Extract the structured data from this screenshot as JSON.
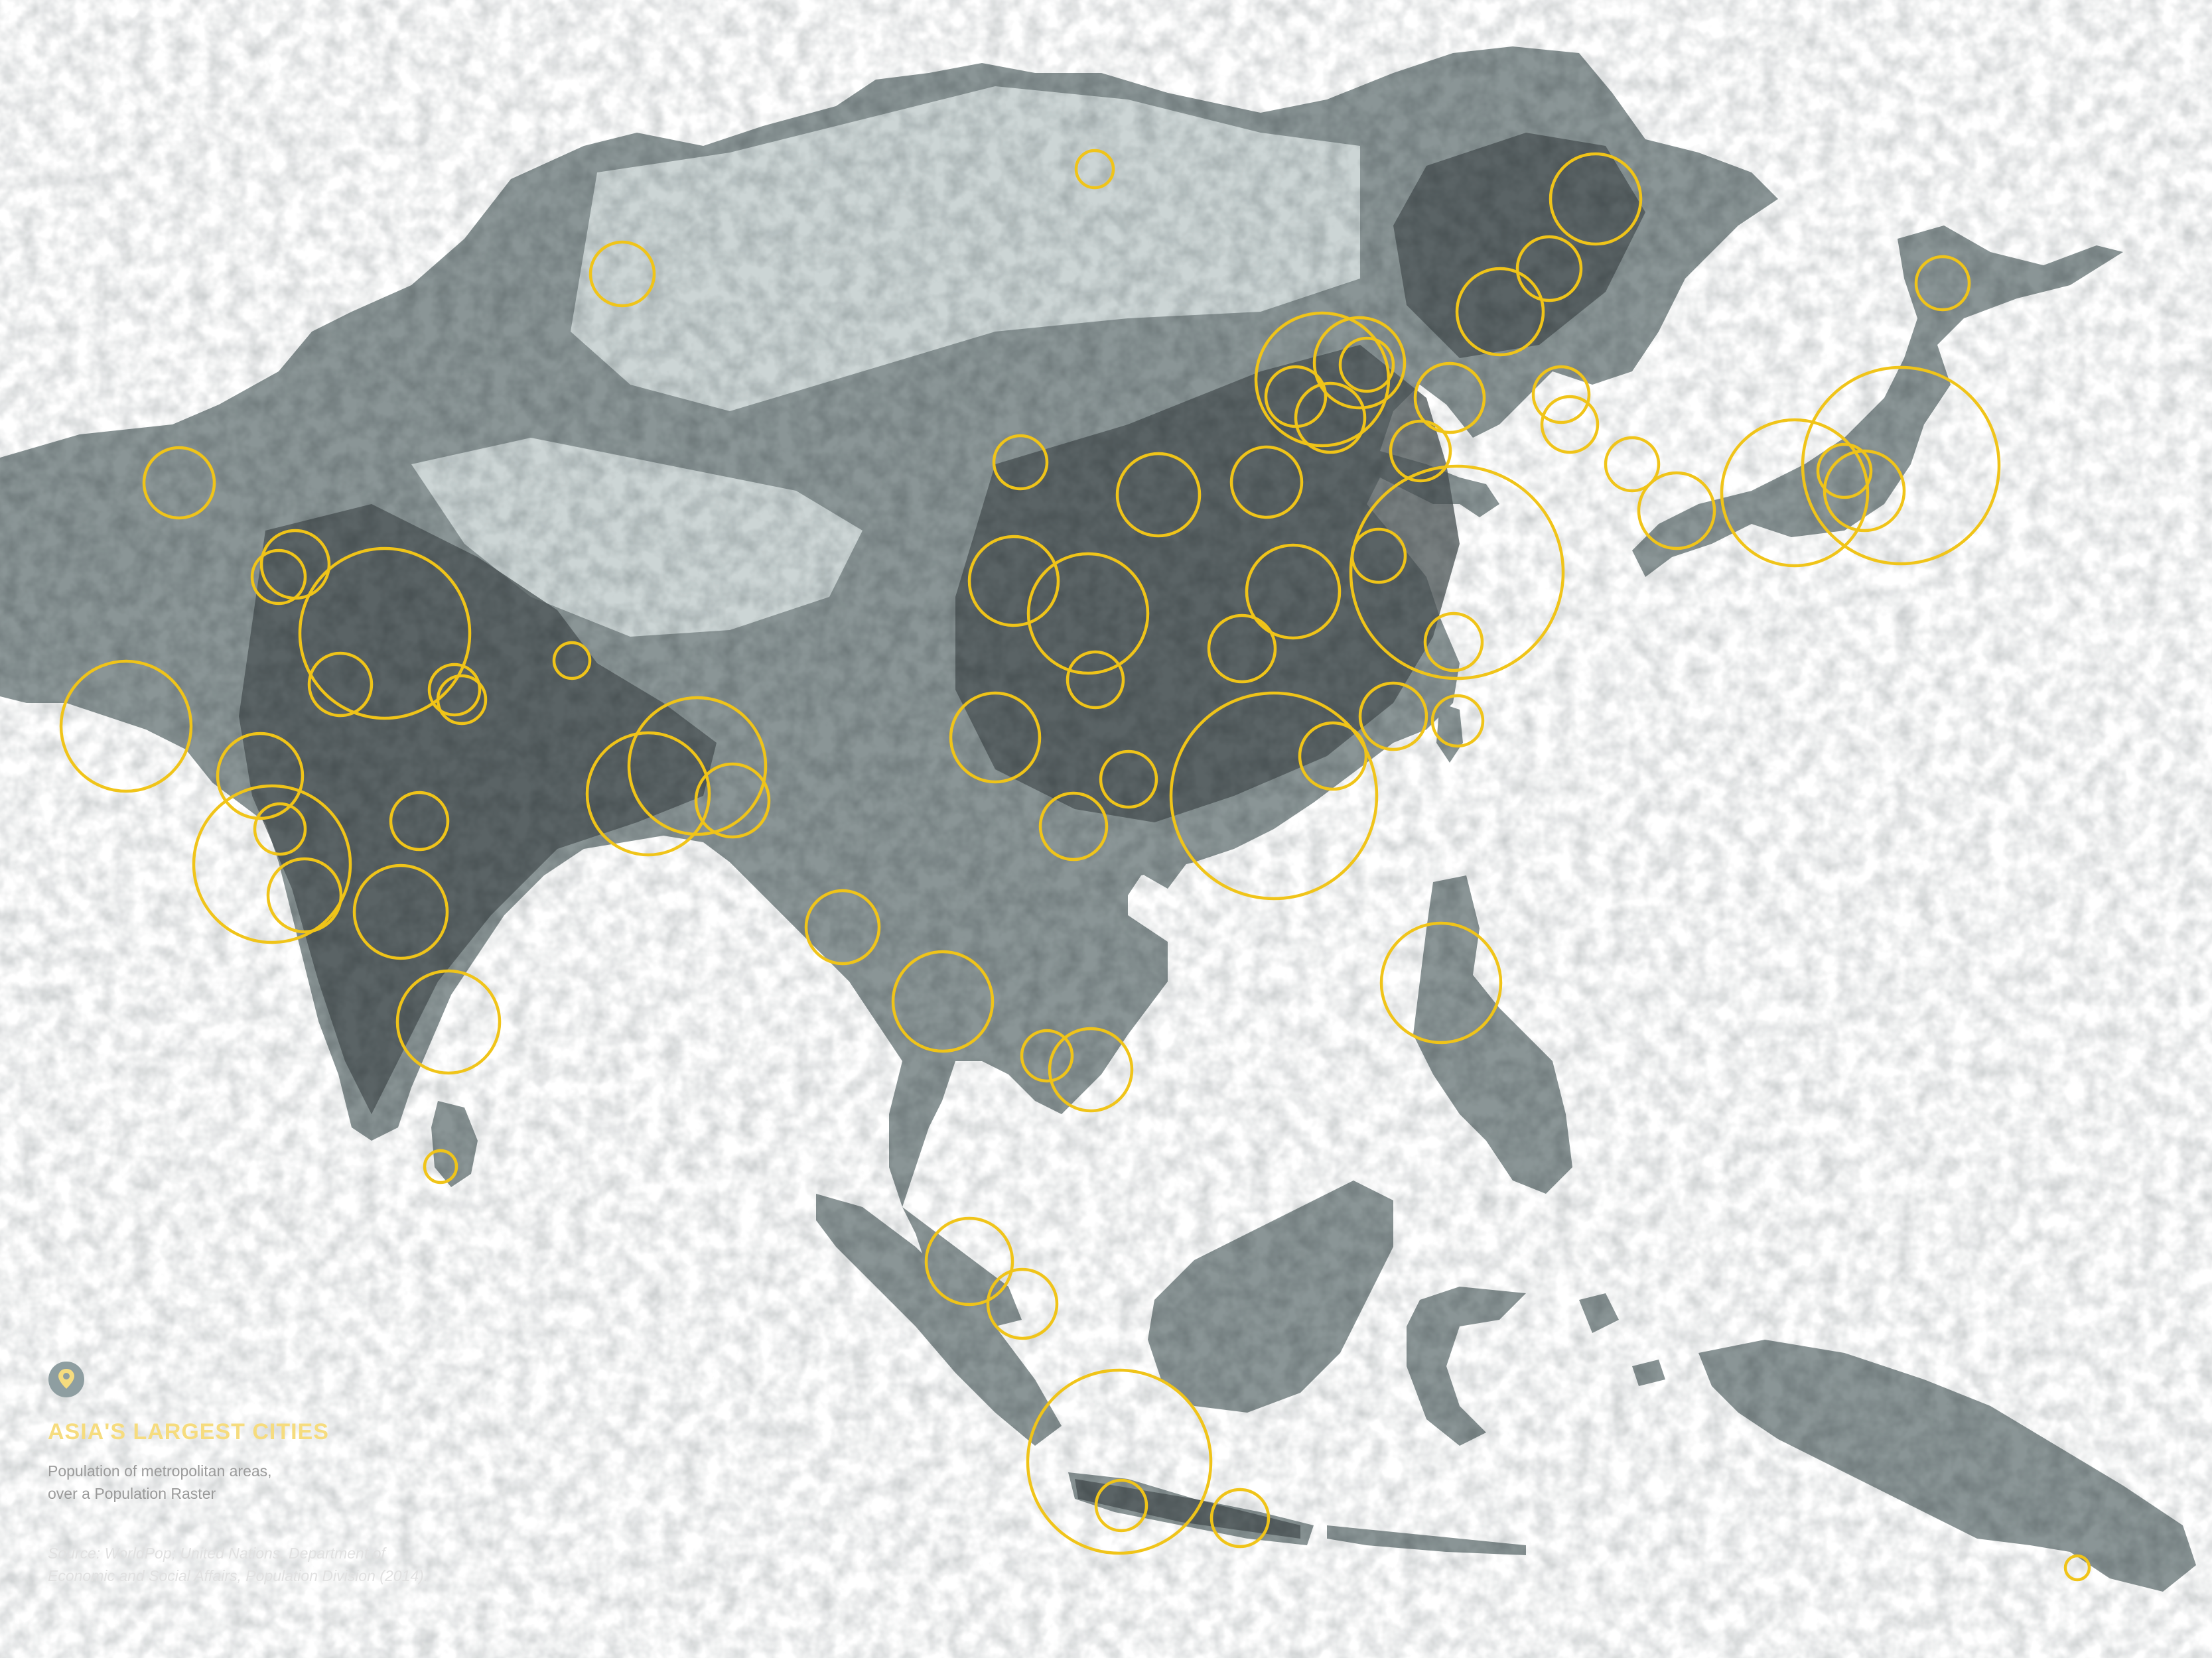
{
  "legend": {
    "icon": "location-pin-icon",
    "title": "ASIA'S LARGEST CITIES",
    "subtitle_line1": "Population of metropolitan areas,",
    "subtitle_line2": "over a Population Raster",
    "source_line1": "Source: WorldPop; United Nations, Department of",
    "source_line2": "Economic and Social Affairs, Population Division (2014)."
  },
  "colors": {
    "circle": "#f0c419",
    "title": "#f6dc7e",
    "land": "#8a9596"
  }
}
